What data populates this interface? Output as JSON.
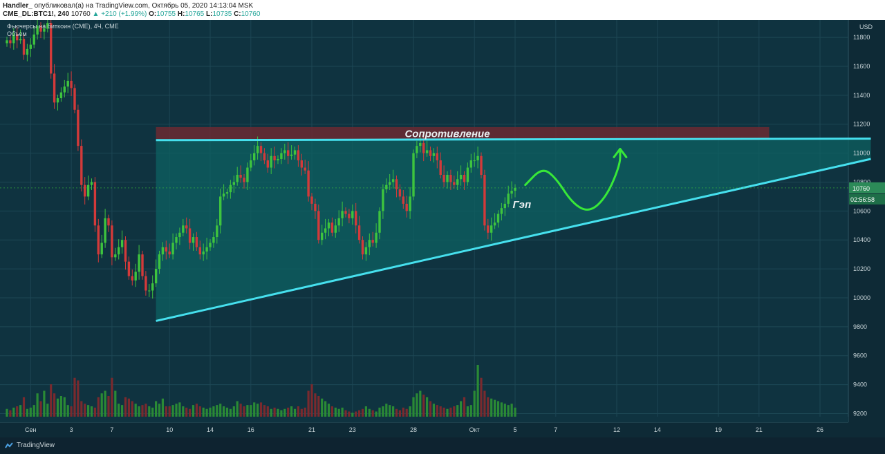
{
  "header": {
    "publisher": "Handler_",
    "published_text": "опубликовал(а) на TradingView.com, Октябрь 05, 2020 14:13:04 MSK",
    "symbol": "CME_DL:BTC1!, 240",
    "last": "10760",
    "change": "+210 (+1.99%)",
    "o_label": "O:",
    "o": "10755",
    "h_label": "H:",
    "h": "10765",
    "l_label": "L:",
    "l": "10735",
    "c_label": "C:",
    "c": "10760"
  },
  "footer": {
    "brand": "TradingView"
  },
  "colors": {
    "background": "#0f3340",
    "up": "#3ec43e",
    "down": "#d33a3a",
    "triangle_fill": "#0e6161",
    "trend_line": "#46e0ee",
    "resistance_zone": "#6b2a32",
    "arrow": "#38e838"
  },
  "chart_data": {
    "type": "candlestick",
    "legend": [
      "Фьючерсы на биткоин (CME), 4Ч, CME",
      "Объем"
    ],
    "currency": "USD",
    "ylim": [
      9140,
      11920
    ],
    "y_ticks": [
      9200,
      9400,
      9600,
      9800,
      10000,
      10200,
      10400,
      10600,
      10800,
      11000,
      11200,
      11400,
      11600,
      11800
    ],
    "x_ticks": [
      {
        "label": "Сен",
        "index": 7
      },
      {
        "label": "3",
        "index": 19
      },
      {
        "label": "7",
        "index": 31
      },
      {
        "label": "10",
        "index": 48
      },
      {
        "label": "14",
        "index": 60
      },
      {
        "label": "16",
        "index": 72
      },
      {
        "label": "21",
        "index": 90
      },
      {
        "label": "23",
        "index": 102
      },
      {
        "label": "28",
        "index": 120
      },
      {
        "label": "Окт",
        "index": 138
      },
      {
        "label": "5",
        "index": 150
      },
      {
        "label": "7",
        "index": 162
      },
      {
        "label": "12",
        "index": 180
      },
      {
        "label": "14",
        "index": 192
      },
      {
        "label": "19",
        "index": 210
      },
      {
        "label": "21",
        "index": 222
      },
      {
        "label": "26",
        "index": 240
      }
    ],
    "closes": [
      11780,
      11760,
      11820,
      11780,
      11790,
      11680,
      11720,
      11750,
      11820,
      11880,
      11840,
      11860,
      11900,
      11550,
      11350,
      11380,
      11420,
      11460,
      11500,
      11450,
      11300,
      11050,
      10780,
      10700,
      10780,
      10800,
      10500,
      10300,
      10380,
      10550,
      10500,
      10280,
      10300,
      10350,
      10400,
      10250,
      10150,
      10120,
      10180,
      10300,
      10150,
      10050,
      10050,
      10100,
      10200,
      10300,
      10350,
      10320,
      10300,
      10380,
      10420,
      10450,
      10500,
      10480,
      10380,
      10420,
      10350,
      10300,
      10320,
      10350,
      10380,
      10420,
      10500,
      10700,
      10720,
      10730,
      10780,
      10800,
      10850,
      10830,
      10800,
      10900,
      10950,
      11000,
      11050,
      11000,
      10950,
      10900,
      10980,
      10950,
      10960,
      11000,
      11020,
      10980,
      10990,
      11020,
      10950,
      10900,
      10880,
      10700,
      10650,
      10600,
      10400,
      10450,
      10480,
      10520,
      10450,
      10500,
      10550,
      10600,
      10580,
      10550,
      10600,
      10500,
      10400,
      10300,
      10350,
      10400,
      10380,
      10450,
      10600,
      10750,
      10780,
      10800,
      10820,
      10750,
      10700,
      10650,
      10600,
      10700,
      11000,
      11050,
      11070,
      11000,
      11020,
      10980,
      11000,
      10950,
      10850,
      10800,
      10850,
      10800,
      10780,
      10820,
      10850,
      10800,
      10900,
      10950,
      10950,
      10980,
      10850,
      10500,
      10450,
      10500,
      10520,
      10580,
      10620,
      10650,
      10720,
      10740,
      10760
    ],
    "volume_max": 800,
    "volumes": [
      60,
      50,
      70,
      80,
      90,
      150,
      60,
      70,
      90,
      180,
      120,
      200,
      100,
      250,
      180,
      140,
      160,
      150,
      90,
      80,
      300,
      280,
      120,
      100,
      90,
      80,
      70,
      150,
      180,
      200,
      160,
      300,
      200,
      100,
      90,
      150,
      140,
      120,
      100,
      80,
      90,
      100,
      80,
      70,
      120,
      100,
      140,
      80,
      80,
      90,
      100,
      110,
      80,
      70,
      60,
      90,
      100,
      80,
      70,
      60,
      70,
      80,
      90,
      100,
      80,
      70,
      60,
      80,
      120,
      100,
      80,
      90,
      90,
      110,
      100,
      110,
      90,
      80,
      60,
      70,
      60,
      50,
      60,
      70,
      80,
      60,
      80,
      60,
      70,
      200,
      250,
      180,
      160,
      140,
      120,
      100,
      80,
      70,
      60,
      70,
      50,
      40,
      30,
      40,
      50,
      60,
      80,
      60,
      50,
      40,
      70,
      80,
      100,
      90,
      80,
      60,
      50,
      70,
      60,
      80,
      150,
      180,
      200,
      170,
      150,
      120,
      100,
      90,
      80,
      70,
      60,
      70,
      80,
      90,
      120,
      150,
      80,
      90,
      200,
      400,
      300,
      200,
      150,
      140,
      130,
      120,
      110,
      100,
      90,
      100,
      70
    ],
    "triangle": {
      "top": {
        "from": [
          44,
          11090
        ],
        "to": [
          255,
          11100
        ]
      },
      "bottom": {
        "from": [
          44,
          9840
        ],
        "to": [
          255,
          10960
        ]
      }
    },
    "resistance_zone": {
      "x_from": 44,
      "x_to": 225,
      "y_from": 11090,
      "y_to": 11180
    },
    "projection_path": [
      [
        153,
        10780
      ],
      [
        158,
        10900
      ],
      [
        162,
        10830
      ],
      [
        167,
        10650
      ],
      [
        172,
        10590
      ],
      [
        177,
        10700
      ],
      [
        181,
        10920
      ],
      [
        181,
        11020
      ]
    ],
    "annotations": [
      {
        "text": "Сопротивление",
        "x": 130,
        "y": 11135
      },
      {
        "text": "Гэп",
        "x": 152,
        "y": 10645
      }
    ],
    "last_price_label": "10760",
    "countdown_label": "02:56:58"
  }
}
